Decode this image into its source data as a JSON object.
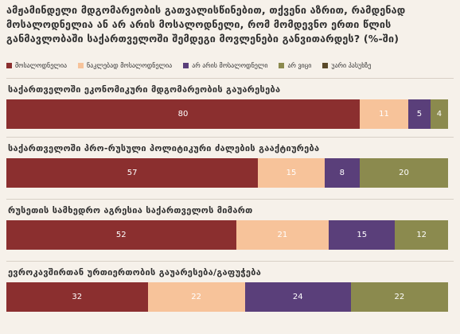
{
  "title": "ამჟამინდელი მდგომარეობის გათვალისწინებით, თქვენი აზრით, რამდენად მოსალოდნელია ან არ არის მოსალოდნელი, რომ მომდევნო ერთი წლის განმავლობაში საქართველოში შემდეგი მოვლენები განვითარდეს? (%-ში)",
  "legend": [
    {
      "label": "მოსალოდნელია",
      "color": "#8b2f2f"
    },
    {
      "label": "ნაკლებად მოსალოდნელია",
      "color": "#f7c39a"
    },
    {
      "label": "არ არის მოსალოდნელი",
      "color": "#5a3f7a"
    },
    {
      "label": "არ ვიცი",
      "color": "#8b8a4e"
    },
    {
      "label": "უარი პასუხზე",
      "color": "#5a4a2a"
    }
  ],
  "chart_data": {
    "type": "bar",
    "orientation": "horizontal-stacked",
    "categories": [
      "საქართველოში ეკონომიკური მდგომარეობის გაუარესება",
      "საქართველოში პრო-რუსული პოლიტიკური ძალების გააქტიურება",
      "რუსეთის სამხედრო აგრესია საქართველოს მიმართ",
      "ევროკავშირთან ურთიერთობის გაუარესება/გაფუჭება"
    ],
    "series": [
      {
        "name": "მოსალოდნელია",
        "values": [
          80,
          57,
          52,
          32
        ]
      },
      {
        "name": "ნაკლებად მოსალოდნელია",
        "values": [
          11,
          15,
          21,
          22
        ]
      },
      {
        "name": "არ არის მოსალოდნელი",
        "values": [
          5,
          8,
          15,
          24
        ]
      },
      {
        "name": "არ ვიცი",
        "values": [
          4,
          20,
          12,
          22
        ]
      },
      {
        "name": "უარი პასუხზე",
        "values": [
          0,
          0,
          0,
          0
        ]
      }
    ],
    "xlim": [
      0,
      100
    ]
  }
}
